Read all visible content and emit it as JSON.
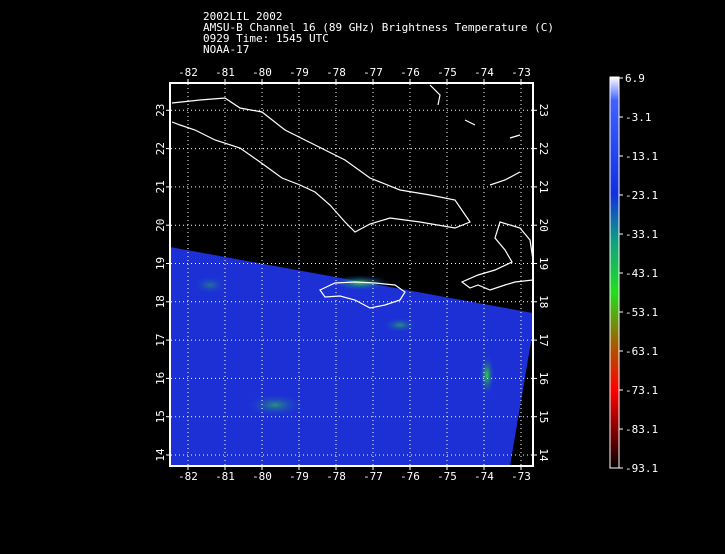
{
  "title_lines": [
    "2002LIL 2002",
    "AMSU-B Channel 16 (89 GHz) Brightness Temperature (C)",
    "0929 Time: 1545 UTC",
    "NOAA-17"
  ],
  "lon_ticks": [
    -82,
    -81,
    -80,
    -79,
    -78,
    -77,
    -76,
    -75,
    -74,
    -73
  ],
  "lat_ticks": [
    14,
    15,
    16,
    17,
    18,
    19,
    20,
    21,
    22,
    23
  ],
  "colorbar_ticks": [
    6.9,
    -3.1,
    -13.1,
    -23.1,
    -33.1,
    -43.1,
    -53.1,
    -63.1,
    -73.1,
    -83.1,
    -93.1
  ]
}
